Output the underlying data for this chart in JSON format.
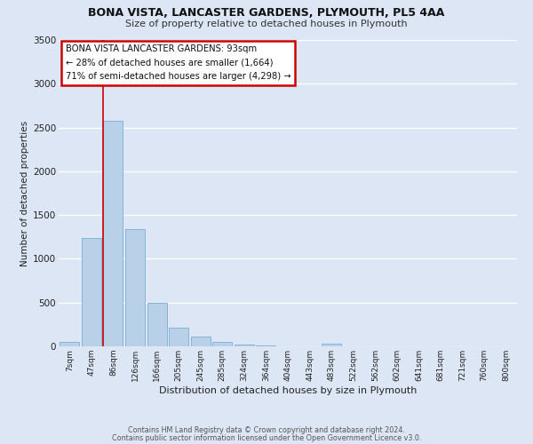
{
  "title": "BONA VISTA, LANCASTER GARDENS, PLYMOUTH, PL5 4AA",
  "subtitle": "Size of property relative to detached houses in Plymouth",
  "xlabel": "Distribution of detached houses by size in Plymouth",
  "ylabel": "Number of detached properties",
  "bar_labels": [
    "7sqm",
    "47sqm",
    "86sqm",
    "126sqm",
    "166sqm",
    "205sqm",
    "245sqm",
    "285sqm",
    "324sqm",
    "364sqm",
    "404sqm",
    "443sqm",
    "483sqm",
    "522sqm",
    "562sqm",
    "602sqm",
    "641sqm",
    "681sqm",
    "721sqm",
    "760sqm",
    "800sqm"
  ],
  "bar_values": [
    50,
    1240,
    2580,
    1340,
    500,
    210,
    110,
    50,
    25,
    10,
    5,
    3,
    30,
    0,
    0,
    0,
    0,
    0,
    0,
    0,
    0
  ],
  "bar_color": "#b8d0e8",
  "bar_edge_color": "#7aaed4",
  "vline_color": "#cc0000",
  "annotation_line1": "BONA VISTA LANCASTER GARDENS: 93sqm",
  "annotation_line2": "← 28% of detached houses are smaller (1,664)",
  "annotation_line3": "71% of semi-detached houses are larger (4,298) →",
  "annotation_box_facecolor": "#ffffff",
  "annotation_box_edgecolor": "#cc0000",
  "ylim": [
    0,
    3500
  ],
  "yticks": [
    0,
    500,
    1000,
    1500,
    2000,
    2500,
    3000,
    3500
  ],
  "background_color": "#dce6f5",
  "grid_color": "#ffffff",
  "footer_line1": "Contains HM Land Registry data © Crown copyright and database right 2024.",
  "footer_line2": "Contains public sector information licensed under the Open Government Licence v3.0."
}
